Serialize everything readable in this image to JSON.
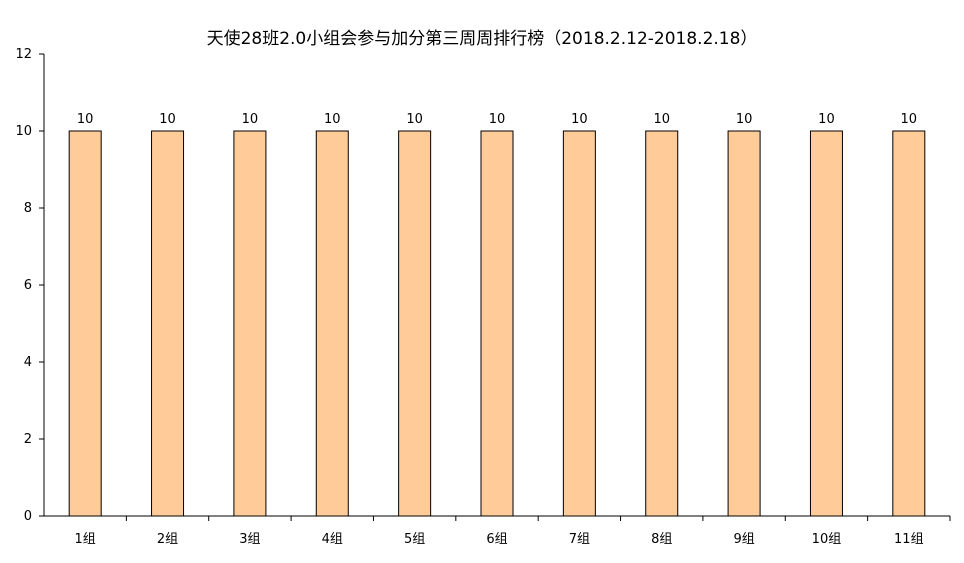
{
  "chart_data": {
    "type": "bar",
    "title": "天使28班2.0小组会参与加分第三周周排行榜（2018.2.12-2018.2.18）",
    "xlabel": "",
    "ylabel": "",
    "categories": [
      "1组",
      "2组",
      "3组",
      "4组",
      "5组",
      "6组",
      "7组",
      "8组",
      "9组",
      "10组",
      "11组"
    ],
    "values": [
      10,
      10,
      10,
      10,
      10,
      10,
      10,
      10,
      10,
      10,
      10
    ],
    "ylim": [
      0,
      12
    ],
    "yticks": [
      0,
      2,
      4,
      6,
      8,
      10,
      12
    ],
    "data_labels": true,
    "grid": false,
    "legend": "none",
    "colors": {
      "bar_fill": "#FFCC99",
      "bar_stroke": "#000000",
      "axis": "#000000",
      "text": "#000000"
    }
  }
}
